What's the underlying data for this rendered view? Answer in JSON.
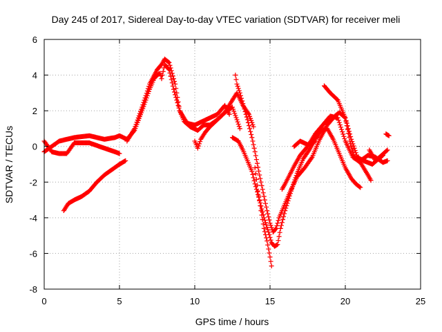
{
  "chart_data": {
    "type": "scatter",
    "title": "Day 245 of 2017, Sidereal Day-to-day VTEC variation (SDTVAR) for receiver meli",
    "xlabel": "GPS time / hours",
    "ylabel": "SDTVAR / TECUs",
    "xlim": [
      0,
      25
    ],
    "ylim": [
      -8,
      6
    ],
    "x_ticks": [
      "0",
      "5",
      "10",
      "15",
      "20",
      "25"
    ],
    "y_ticks": [
      "6",
      "4",
      "2",
      "0",
      "-2",
      "-4",
      "-6",
      "-8"
    ],
    "grid": true,
    "legend": "none",
    "marker": "plus",
    "colors": {
      "series": "#ff0000",
      "grid": "#a0a0a0",
      "axis": "#000000"
    },
    "series": [
      {
        "x": [
          0.0,
          0.5,
          1.0,
          2.0,
          3.0,
          4.0,
          4.7,
          5.0,
          5.5,
          6.0,
          6.5,
          7.0,
          7.3,
          7.5,
          7.7,
          7.8,
          8.0,
          8.3,
          8.6,
          9.0,
          9.3,
          9.7,
          10.2,
          10.6,
          11.0,
          11.5,
          12.0,
          12.5,
          12.8,
          13.0
        ],
        "y": [
          -0.3,
          0.0,
          0.3,
          0.5,
          0.6,
          0.4,
          0.5,
          0.6,
          0.4,
          0.9,
          2.0,
          3.2,
          3.8,
          4.0,
          4.1,
          3.8,
          4.6,
          4.3,
          3.2,
          2.0,
          1.4,
          1.1,
          0.9,
          1.2,
          1.2,
          1.5,
          1.9,
          2.2,
          1.5,
          1.0
        ]
      },
      {
        "x": [
          0.0,
          0.5,
          1.0,
          1.5,
          2.0,
          3.0,
          4.0,
          4.7,
          5.0
        ],
        "y": [
          0.3,
          -0.3,
          -0.4,
          -0.4,
          0.2,
          0.2,
          -0.1,
          -0.3,
          -0.4
        ]
      },
      {
        "x": [
          1.3,
          1.6,
          2.0,
          2.5,
          3.0,
          3.5,
          4.0,
          4.5,
          5.0,
          5.4
        ],
        "y": [
          -3.6,
          -3.2,
          -3.0,
          -2.8,
          -2.5,
          -2.0,
          -1.6,
          -1.3,
          -1.0,
          -0.8
        ]
      },
      {
        "x": [
          5.5,
          6.0,
          6.5,
          7.0,
          7.5,
          7.8,
          8.0,
          8.3,
          8.7,
          9.0,
          9.5,
          10.0,
          10.5,
          11.0,
          11.5,
          12.0,
          12.3
        ],
        "y": [
          0.3,
          1.0,
          2.2,
          3.5,
          4.3,
          4.6,
          4.9,
          4.7,
          3.5,
          2.0,
          1.3,
          1.2,
          1.4,
          1.6,
          1.8,
          2.3,
          1.8
        ]
      },
      {
        "x": [
          10.0,
          10.2,
          10.4,
          10.7,
          11.0,
          11.5,
          12.0,
          12.5,
          12.8,
          13.2,
          13.6,
          13.9
        ],
        "y": [
          0.3,
          -0.1,
          0.4,
          0.8,
          1.1,
          1.5,
          1.9,
          2.6,
          3.0,
          2.3,
          1.8,
          1.1
        ]
      },
      {
        "x": [
          12.7,
          12.8,
          13.0,
          13.2,
          13.5,
          13.8,
          14.0,
          14.3,
          14.6,
          14.8,
          15.0,
          15.2,
          15.4,
          15.6,
          15.9,
          16.3,
          16.8,
          17.3,
          17.8,
          18.3,
          18.8,
          19.3,
          19.6,
          20.0,
          20.4,
          20.8,
          21.2,
          21.5,
          21.8,
          22.2,
          22.5
        ],
        "y": [
          4.0,
          3.5,
          3.0,
          2.4,
          1.5,
          0.5,
          -0.3,
          -1.6,
          -2.8,
          -3.6,
          -4.3,
          -4.8,
          -4.6,
          -4.0,
          -3.4,
          -2.6,
          -1.7,
          -1.2,
          -0.6,
          0.4,
          1.2,
          1.7,
          1.9,
          1.6,
          0.4,
          -0.6,
          -0.8,
          -0.9,
          -1.0,
          -0.7,
          -0.5
        ]
      },
      {
        "x": [
          12.5,
          12.9,
          13.2,
          13.5,
          13.8,
          14.0,
          14.3,
          14.6,
          14.9,
          15.1,
          15.3,
          15.5,
          15.7,
          16.0,
          16.4,
          16.8,
          17.2,
          17.6,
          18.0,
          18.4,
          18.8,
          19.2,
          19.6,
          20.0,
          20.4,
          20.7,
          21.0
        ],
        "y": [
          0.5,
          0.3,
          -0.2,
          -0.8,
          -1.4,
          -2.1,
          -3.0,
          -4.0,
          -4.8,
          -5.4,
          -5.6,
          -5.5,
          -4.6,
          -3.6,
          -2.5,
          -1.5,
          -0.7,
          -0.2,
          0.4,
          0.9,
          1.0,
          0.4,
          -0.4,
          -1.2,
          -1.8,
          -2.1,
          -2.3
        ]
      },
      {
        "x": [
          14.0,
          14.2,
          14.4,
          14.6,
          14.8,
          15.0,
          15.1
        ],
        "y": [
          -1.2,
          -2.5,
          -3.6,
          -4.6,
          -5.3,
          -6.2,
          -6.7
        ]
      },
      {
        "x": [
          15.8,
          16.0,
          16.3,
          16.6,
          17.0,
          17.5,
          18.0,
          18.5,
          19.0,
          19.5,
          20.0,
          20.5,
          21.0,
          21.5,
          21.7
        ],
        "y": [
          -2.4,
          -2.1,
          -1.6,
          -1.1,
          -0.5,
          0.0,
          0.7,
          1.2,
          1.7,
          1.6,
          0.3,
          -0.6,
          -0.9,
          -1.6,
          -1.9
        ]
      },
      {
        "x": [
          16.6,
          17.0,
          17.5,
          18.0
        ],
        "y": [
          0.0,
          0.3,
          0.1,
          0.3
        ]
      },
      {
        "x": [
          18.6,
          19.0,
          19.5,
          20.0,
          20.3,
          20.6,
          21.0,
          21.5,
          22.0,
          22.5,
          22.8
        ],
        "y": [
          3.4,
          3.0,
          2.6,
          1.6,
          0.3,
          -0.6,
          -0.8,
          -0.5,
          -0.6,
          -0.9,
          -0.8
        ]
      },
      {
        "x": [
          21.6,
          22.0,
          22.4,
          22.8
        ],
        "y": [
          -0.2,
          -0.8,
          -0.5,
          -0.2
        ]
      },
      {
        "x": [
          22.7,
          22.9
        ],
        "y": [
          0.7,
          0.6
        ]
      }
    ]
  }
}
